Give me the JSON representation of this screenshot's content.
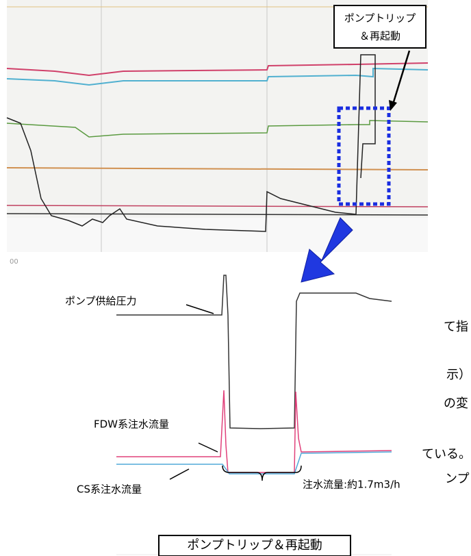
{
  "callout_top": {
    "lines": [
      "ポンプトリップ",
      "＆再起動"
    ]
  },
  "top_chart": {
    "axis_label": "00"
  },
  "bottom_chart": {
    "labels": {
      "pump_pressure": "ポンプ供給圧力",
      "fdw_flow": "FDW系注水流量",
      "cs_flow": "CS系注水流量",
      "flow_note": "注水流量:約1.7m3/h"
    },
    "callout": "ポンプトリップ＆再起動"
  },
  "text_fragments": [
    "て指",
    "示）",
    "の変",
    "ている。",
    "ンプ"
  ]
}
